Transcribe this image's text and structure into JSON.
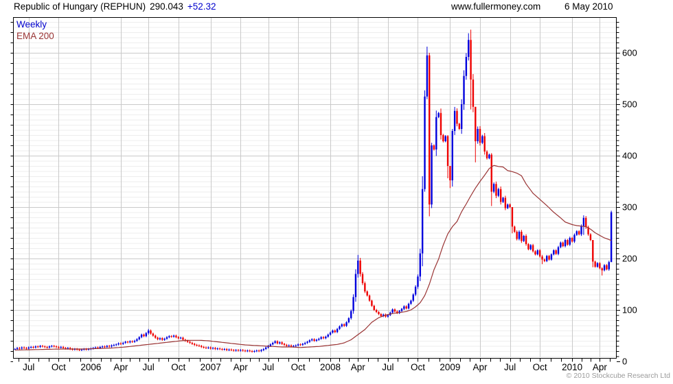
{
  "header": {
    "instrument": "Republic of Hungary (REPHUN)",
    "last_price": "290.043",
    "change": "+52.32",
    "site": "www.fullermoney.com",
    "date": "6 May 2010"
  },
  "legend": {
    "weekly": "Weekly",
    "ema": "EMA 200"
  },
  "footer": {
    "copyright": "© 2010 Stockcube Research Ltd"
  },
  "colors": {
    "up": "#0000dd",
    "down": "#ee0000",
    "ema": "#993333",
    "legend_weekly": "#0000cc",
    "change_text": "#0000cc",
    "grid_minor": "#ededed",
    "grid_major": "#c9c9c9",
    "axis": "#000000",
    "copyright": "#9a9a9a"
  },
  "chart_data": {
    "type": "candlestick",
    "series_name": "Weekly",
    "overlay_name": "EMA 200",
    "period": "weekly",
    "weeks": 260,
    "y_axis": {
      "labels": [
        "0",
        "100",
        "200",
        "300",
        "400",
        "500",
        "600"
      ],
      "label_values": [
        0,
        100,
        200,
        300,
        400,
        500,
        600
      ],
      "minor_step": 10,
      "max": 660
    },
    "x_axis": {
      "labels": [
        {
          "text": "Jul",
          "week": 6
        },
        {
          "text": "Oct",
          "week": 19
        },
        {
          "text": "2006",
          "week": 33
        },
        {
          "text": "Apr",
          "week": 46
        },
        {
          "text": "Jul",
          "week": 58
        },
        {
          "text": "Oct",
          "week": 71
        },
        {
          "text": "2007",
          "week": 85
        },
        {
          "text": "Apr",
          "week": 98
        },
        {
          "text": "Jul",
          "week": 110
        },
        {
          "text": "Oct",
          "week": 123
        },
        {
          "text": "2008",
          "week": 137
        },
        {
          "text": "Apr",
          "week": 149
        },
        {
          "text": "Jul",
          "week": 162
        },
        {
          "text": "Oct",
          "week": 175
        },
        {
          "text": "2009",
          "week": 189
        },
        {
          "text": "Apr",
          "week": 202
        },
        {
          "text": "Jul",
          "week": 215
        },
        {
          "text": "Oct",
          "week": 228
        },
        {
          "text": "2010",
          "week": 242
        },
        {
          "text": "Apr",
          "week": 254
        }
      ]
    },
    "closes": [
      24,
      26,
      25,
      27,
      26,
      25,
      27,
      28,
      27,
      29,
      28,
      30,
      29,
      28,
      27,
      29,
      30,
      29,
      28,
      27,
      28,
      26,
      25,
      26,
      24,
      23,
      24,
      23,
      22,
      23,
      24,
      23,
      24,
      25,
      26,
      27,
      26,
      28,
      29,
      28,
      30,
      29,
      31,
      32,
      33,
      35,
      34,
      36,
      38,
      37,
      39,
      38,
      40,
      43,
      47,
      52,
      49,
      55,
      60,
      54,
      50,
      46,
      43,
      45,
      42,
      44,
      47,
      49,
      48,
      50,
      47,
      45,
      46,
      42,
      40,
      38,
      36,
      34,
      32,
      31,
      30,
      28,
      27,
      26,
      27,
      25,
      26,
      24,
      25,
      24,
      23,
      24,
      22,
      23,
      22,
      21,
      22,
      21,
      22,
      21,
      20,
      21,
      20,
      19,
      20,
      21,
      20,
      22,
      24,
      27,
      30,
      33,
      36,
      39,
      35,
      37,
      34,
      32,
      30,
      31,
      29,
      30,
      31,
      33,
      32,
      34,
      36,
      38,
      41,
      43,
      40,
      42,
      44,
      47,
      45,
      48,
      52,
      56,
      60,
      57,
      63,
      68,
      72,
      69,
      76,
      84,
      98,
      125,
      170,
      196,
      170,
      152,
      136,
      128,
      118,
      108,
      100,
      96,
      92,
      88,
      91,
      87,
      90,
      95,
      101,
      97,
      94,
      98,
      102,
      107,
      103,
      112,
      118,
      130,
      145,
      165,
      210,
      335,
      515,
      595,
      305,
      420,
      412,
      475,
      483,
      440,
      428,
      438,
      380,
      352,
      448,
      487,
      462,
      452,
      500,
      555,
      592,
      625,
      548,
      495,
      428,
      452,
      425,
      438,
      408,
      395,
      402,
      330,
      345,
      322,
      335,
      310,
      318,
      298,
      305,
      300,
      262,
      252,
      238,
      252,
      234,
      244,
      228,
      218,
      226,
      214,
      208,
      216,
      204,
      198,
      195,
      205,
      198,
      208,
      216,
      209,
      222,
      231,
      224,
      236,
      227,
      240,
      233,
      246,
      253,
      247,
      263,
      279,
      261,
      247,
      236,
      194,
      184,
      191,
      181,
      177,
      187,
      179,
      193,
      290
    ],
    "wick_overrides": {
      "58": [
        63,
        52
      ],
      "149": [
        207,
        163
      ],
      "178": [
        527,
        330
      ],
      "179": [
        612,
        510
      ],
      "180": [
        600,
        282
      ],
      "181": [
        425,
        298
      ],
      "188": [
        440,
        356
      ],
      "189": [
        380,
        337
      ],
      "190": [
        452,
        340
      ],
      "197": [
        638,
        585
      ],
      "198": [
        645,
        490
      ],
      "200": [
        455,
        387
      ],
      "207": [
        405,
        302
      ],
      "216": [
        300,
        249
      ],
      "229": [
        207,
        189
      ],
      "247": [
        284,
        246
      ],
      "251": [
        236,
        183
      ],
      "255": [
        183,
        167
      ],
      "259": [
        293,
        196
      ]
    },
    "ema_anchors": [
      [
        0,
        22
      ],
      [
        10,
        23
      ],
      [
        20,
        24
      ],
      [
        30,
        24
      ],
      [
        36,
        25
      ],
      [
        42,
        26
      ],
      [
        48,
        28
      ],
      [
        52,
        30
      ],
      [
        56,
        32
      ],
      [
        60,
        34
      ],
      [
        64,
        36
      ],
      [
        68,
        38
      ],
      [
        72,
        40
      ],
      [
        76,
        41
      ],
      [
        80,
        41
      ],
      [
        84,
        40
      ],
      [
        88,
        38
      ],
      [
        92,
        36
      ],
      [
        96,
        34
      ],
      [
        100,
        32
      ],
      [
        104,
        31
      ],
      [
        108,
        30
      ],
      [
        112,
        29
      ],
      [
        116,
        28
      ],
      [
        120,
        28
      ],
      [
        124,
        27
      ],
      [
        128,
        28
      ],
      [
        132,
        29
      ],
      [
        136,
        31
      ],
      [
        140,
        33
      ],
      [
        143,
        36
      ],
      [
        146,
        42
      ],
      [
        149,
        52
      ],
      [
        152,
        62
      ],
      [
        155,
        76
      ],
      [
        158,
        85
      ],
      [
        161,
        90
      ],
      [
        164,
        93
      ],
      [
        167,
        95
      ],
      [
        170,
        97
      ],
      [
        172,
        100
      ],
      [
        174,
        106
      ],
      [
        176,
        114
      ],
      [
        178,
        128
      ],
      [
        180,
        150
      ],
      [
        182,
        178
      ],
      [
        184,
        199
      ],
      [
        186,
        226
      ],
      [
        188,
        248
      ],
      [
        190,
        262
      ],
      [
        192,
        272
      ],
      [
        194,
        291
      ],
      [
        196,
        306
      ],
      [
        198,
        322
      ],
      [
        200,
        337
      ],
      [
        202,
        350
      ],
      [
        204,
        362
      ],
      [
        206,
        375
      ],
      [
        208,
        381
      ],
      [
        210,
        379
      ],
      [
        212,
        378
      ],
      [
        214,
        371
      ],
      [
        216,
        369
      ],
      [
        218,
        366
      ],
      [
        220,
        361
      ],
      [
        222,
        345
      ],
      [
        225,
        327
      ],
      [
        228,
        315
      ],
      [
        231,
        303
      ],
      [
        234,
        290
      ],
      [
        237,
        279
      ],
      [
        239,
        271
      ],
      [
        242,
        266
      ],
      [
        244,
        264
      ],
      [
        246,
        263
      ],
      [
        248,
        262
      ],
      [
        250,
        257
      ],
      [
        252,
        250
      ],
      [
        254,
        245
      ],
      [
        256,
        240
      ],
      [
        258,
        237
      ],
      [
        259,
        235
      ]
    ]
  }
}
